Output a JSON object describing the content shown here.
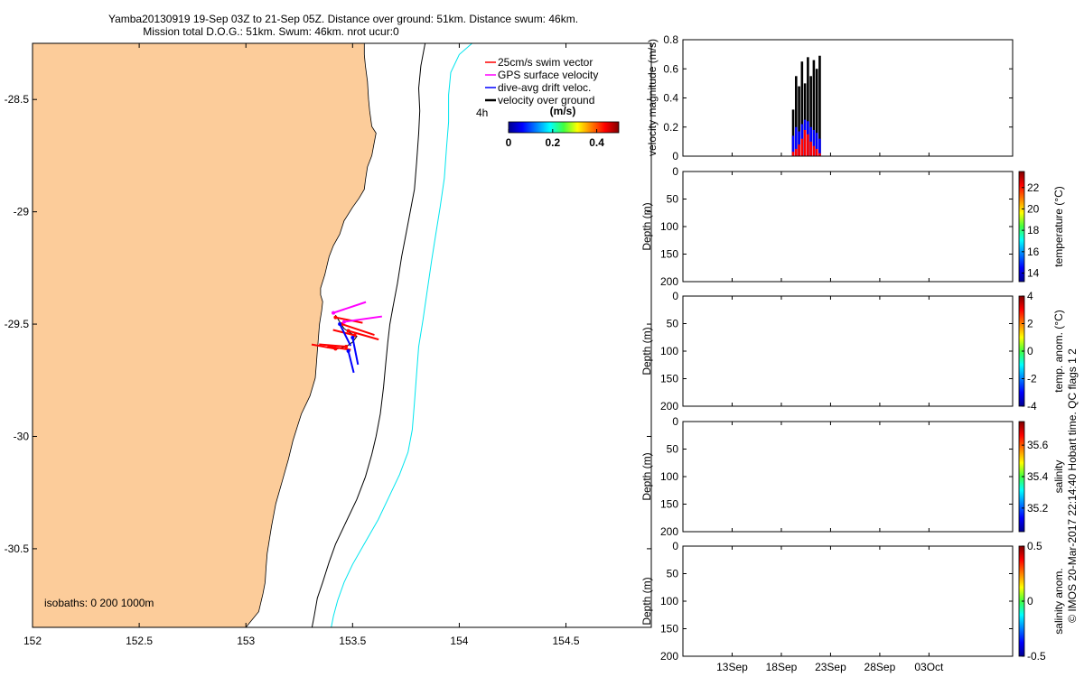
{
  "header": {
    "line1": "Yamba20130919 19-Sep 03Z to 21-Sep 05Z. Distance over ground: 51km. Distance swum: 46km.",
    "line2": "Mission total D.O.G.: 51km. Swum: 46km. nrot ucur:0"
  },
  "footer": {
    "credit": "© IMOS 20-Mar-2017 22:14:40 Hobart time. QC flags 1  2"
  },
  "colors": {
    "land": "#fccc9a",
    "isobath_200": "#000000",
    "isobath_1000": "#00e5ee",
    "swim": "#ff0000",
    "gps": "#ff00ff",
    "dive": "#0000ff",
    "vog": "#000000"
  },
  "chart_data": [
    {
      "id": "map",
      "type": "scatter",
      "title": "",
      "xlabel": "",
      "ylabel": "",
      "xlim": [
        152.0,
        154.9
      ],
      "ylim": [
        -30.85,
        -28.25
      ],
      "xticks": [
        "152",
        "152.5",
        "153",
        "153.5",
        "154",
        "154.5"
      ],
      "xtick_values": [
        152,
        152.5,
        153,
        153.5,
        154,
        154.5
      ],
      "yticks": [
        "-28.5",
        "-29",
        "-29.5",
        "-30",
        "-30.5"
      ],
      "ytick_values": [
        -28.5,
        -29,
        -29.5,
        -30,
        -30.5
      ],
      "legend": {
        "position": "top-right",
        "entries": [
          {
            "label": "25cm/s swim vector",
            "color": "#ff0000"
          },
          {
            "label": "GPS surface velocity",
            "color": "#ff00ff"
          },
          {
            "label": "dive-avg drift veloc.",
            "color": "#0000ff"
          },
          {
            "label": "velocity over ground",
            "color": "#000000"
          }
        ]
      },
      "time_label": "4h",
      "colorbar": {
        "label": "(m/s)",
        "ticks": [
          "0",
          "0.2",
          "0.4"
        ],
        "tick_values": [
          0,
          0.2,
          0.4
        ],
        "range": [
          0,
          0.5
        ]
      },
      "annotation": "isobaths: 0   200  1000m",
      "coast": [
        [
          153.555,
          -28.25
        ],
        [
          153.555,
          -28.3
        ],
        [
          153.56,
          -28.35
        ],
        [
          153.57,
          -28.42
        ],
        [
          153.575,
          -28.5
        ],
        [
          153.58,
          -28.55
        ],
        [
          153.59,
          -28.62
        ],
        [
          153.61,
          -28.65
        ],
        [
          153.6,
          -28.7
        ],
        [
          153.59,
          -28.75
        ],
        [
          153.57,
          -28.8
        ],
        [
          153.56,
          -28.86
        ],
        [
          153.555,
          -28.9
        ],
        [
          153.53,
          -28.94
        ],
        [
          153.5,
          -28.98
        ],
        [
          153.46,
          -29.04
        ],
        [
          153.44,
          -29.1
        ],
        [
          153.41,
          -29.15
        ],
        [
          153.39,
          -29.2
        ],
        [
          153.37,
          -29.28
        ],
        [
          153.35,
          -29.34
        ],
        [
          153.35,
          -29.37
        ],
        [
          153.36,
          -29.4
        ],
        [
          153.355,
          -29.44
        ],
        [
          153.345,
          -29.5
        ],
        [
          153.34,
          -29.56
        ],
        [
          153.335,
          -29.62
        ],
        [
          153.33,
          -29.68
        ],
        [
          153.325,
          -29.74
        ],
        [
          153.3,
          -29.82
        ],
        [
          153.26,
          -29.9
        ],
        [
          153.24,
          -29.96
        ],
        [
          153.22,
          -30.02
        ],
        [
          153.2,
          -30.1
        ],
        [
          153.17,
          -30.2
        ],
        [
          153.14,
          -30.3
        ],
        [
          153.12,
          -30.4
        ],
        [
          153.11,
          -30.46
        ],
        [
          153.1,
          -30.52
        ],
        [
          153.095,
          -30.58
        ],
        [
          153.09,
          -30.65
        ],
        [
          153.08,
          -30.7
        ],
        [
          153.06,
          -30.78
        ],
        [
          153.0,
          -30.85
        ]
      ],
      "isobath_200": [
        [
          153.84,
          -28.25
        ],
        [
          153.82,
          -28.35
        ],
        [
          153.81,
          -28.45
        ],
        [
          153.815,
          -28.55
        ],
        [
          153.81,
          -28.65
        ],
        [
          153.8,
          -28.78
        ],
        [
          153.79,
          -28.9
        ],
        [
          153.77,
          -29.0
        ],
        [
          153.75,
          -29.1
        ],
        [
          153.73,
          -29.2
        ],
        [
          153.71,
          -29.32
        ],
        [
          153.69,
          -29.42
        ],
        [
          153.675,
          -29.5
        ],
        [
          153.665,
          -29.58
        ],
        [
          153.655,
          -29.68
        ],
        [
          153.645,
          -29.78
        ],
        [
          153.63,
          -29.9
        ],
        [
          153.61,
          -30.0
        ],
        [
          153.59,
          -30.08
        ],
        [
          153.56,
          -30.18
        ],
        [
          153.52,
          -30.28
        ],
        [
          153.47,
          -30.38
        ],
        [
          153.42,
          -30.48
        ],
        [
          153.39,
          -30.56
        ],
        [
          153.36,
          -30.65
        ],
        [
          153.335,
          -30.72
        ],
        [
          153.32,
          -30.8
        ],
        [
          153.31,
          -30.85
        ]
      ],
      "isobath_1000": [
        [
          154.06,
          -28.25
        ],
        [
          154.0,
          -28.3
        ],
        [
          153.96,
          -28.38
        ],
        [
          153.95,
          -28.48
        ],
        [
          153.95,
          -28.6
        ],
        [
          153.94,
          -28.72
        ],
        [
          153.93,
          -28.85
        ],
        [
          153.91,
          -28.98
        ],
        [
          153.89,
          -29.1
        ],
        [
          153.87,
          -29.22
        ],
        [
          153.85,
          -29.35
        ],
        [
          153.83,
          -29.48
        ],
        [
          153.81,
          -29.6
        ],
        [
          153.8,
          -29.72
        ],
        [
          153.79,
          -29.85
        ],
        [
          153.78,
          -29.97
        ],
        [
          153.76,
          -30.07
        ],
        [
          153.72,
          -30.17
        ],
        [
          153.67,
          -30.27
        ],
        [
          153.62,
          -30.37
        ],
        [
          153.56,
          -30.47
        ],
        [
          153.5,
          -30.57
        ],
        [
          153.46,
          -30.65
        ],
        [
          153.43,
          -30.73
        ],
        [
          153.41,
          -30.8
        ],
        [
          153.4,
          -30.85
        ]
      ],
      "track": [
        [
          153.42,
          -29.46
        ],
        [
          153.44,
          -29.49
        ],
        [
          153.46,
          -29.52
        ],
        [
          153.49,
          -29.54
        ],
        [
          153.52,
          -29.555
        ],
        [
          153.5,
          -29.58
        ],
        [
          153.47,
          -29.6
        ],
        [
          153.43,
          -29.61
        ],
        [
          153.405,
          -29.6
        ],
        [
          153.38,
          -29.605
        ]
      ],
      "vectors": [
        {
          "lon": 153.42,
          "lat": -29.47,
          "type": "swim",
          "u": 0.25,
          "v": -0.05
        },
        {
          "lon": 153.45,
          "lat": -29.5,
          "type": "swim",
          "u": 0.3,
          "v": -0.1
        },
        {
          "lon": 153.48,
          "lat": -29.53,
          "type": "swim",
          "u": 0.28,
          "v": -0.08
        },
        {
          "lon": 153.51,
          "lat": -29.55,
          "type": "swim",
          "u": -0.2,
          "v": 0.05
        },
        {
          "lon": 153.47,
          "lat": -29.6,
          "type": "swim",
          "u": -0.25,
          "v": 0.02
        },
        {
          "lon": 153.42,
          "lat": -29.61,
          "type": "swim",
          "u": -0.22,
          "v": 0.04
        },
        {
          "lon": 153.39,
          "lat": -29.6,
          "type": "swim",
          "u": 0.2,
          "v": -0.03
        },
        {
          "lon": 153.44,
          "lat": -29.5,
          "type": "dive",
          "u": 0.1,
          "v": -0.2
        },
        {
          "lon": 153.5,
          "lat": -29.56,
          "type": "dive",
          "u": 0.05,
          "v": -0.25
        },
        {
          "lon": 153.48,
          "lat": -29.62,
          "type": "dive",
          "u": 0.05,
          "v": -0.2
        },
        {
          "lon": 153.41,
          "lat": -29.45,
          "type": "gps",
          "u": 0.3,
          "v": 0.1
        },
        {
          "lon": 153.46,
          "lat": -29.49,
          "type": "gps",
          "u": 0.35,
          "v": 0.05
        }
      ]
    },
    {
      "id": "velocity",
      "type": "bar",
      "title": "",
      "xlabel": "",
      "ylabel": "velocity magnitude (m/s)",
      "ylim": [
        0,
        0.8
      ],
      "xlim": [
        8.0,
        41.5
      ],
      "yticks": [
        "0",
        "0.2",
        "0.4",
        "0.6",
        "0.8"
      ],
      "ytick_values": [
        0,
        0.2,
        0.4,
        0.6,
        0.8
      ],
      "series": [
        {
          "name": "velocity over ground",
          "color": "#000000",
          "x": [
            19.2,
            19.5,
            19.8,
            20.1,
            20.4,
            20.7,
            21.0,
            21.3,
            21.6,
            21.9
          ],
          "values": [
            0.32,
            0.55,
            0.48,
            0.65,
            0.5,
            0.68,
            0.55,
            0.66,
            0.6,
            0.69
          ]
        },
        {
          "name": "dive-avg drift veloc.",
          "color": "#0000ff",
          "x": [
            19.2,
            19.5,
            19.8,
            20.1,
            20.4,
            20.7,
            21.0,
            21.3,
            21.6,
            21.9
          ],
          "values": [
            0.14,
            0.2,
            0.17,
            0.22,
            0.25,
            0.24,
            0.2,
            0.18,
            0.16,
            0.12
          ]
        },
        {
          "name": "25cm/s swim vector",
          "color": "#ff0000",
          "x": [
            19.2,
            19.5,
            19.8,
            20.1,
            20.4,
            20.7,
            21.0,
            21.3,
            21.6,
            21.9
          ],
          "values": [
            0.03,
            0.05,
            0.08,
            0.12,
            0.18,
            0.15,
            0.1,
            0.07,
            0.05,
            0.02
          ]
        }
      ]
    },
    {
      "id": "temperature",
      "type": "heatmap",
      "title": "",
      "xlabel": "",
      "ylabel": "Depth (m)",
      "ylim": [
        200,
        0
      ],
      "yticks": [
        "0",
        "50",
        "100",
        "150",
        "200"
      ],
      "ytick_values": [
        0,
        50,
        100,
        150,
        200
      ],
      "colorbar": {
        "label": "temperature (°C)",
        "range": [
          13.2,
          23.5
        ],
        "ticks": [
          "14",
          "16",
          "18",
          "20",
          "22"
        ],
        "tick_values": [
          14,
          16,
          18,
          20,
          22
        ]
      }
    },
    {
      "id": "temp_anom",
      "type": "heatmap",
      "title": "",
      "xlabel": "",
      "ylabel": "Depth (m)",
      "ylim": [
        200,
        0
      ],
      "yticks": [
        "0",
        "50",
        "100",
        "150",
        "200"
      ],
      "ytick_values": [
        0,
        50,
        100,
        150,
        200
      ],
      "colorbar": {
        "label": "temp. anom. (°C)",
        "range": [
          -4,
          4
        ],
        "ticks": [
          "-4",
          "-2",
          "0",
          "2",
          "4"
        ],
        "tick_values": [
          -4,
          -2,
          0,
          2,
          4
        ]
      }
    },
    {
      "id": "salinity",
      "type": "heatmap",
      "title": "",
      "xlabel": "",
      "ylabel": "Depth (m)",
      "ylim": [
        200,
        0
      ],
      "yticks": [
        "0",
        "50",
        "100",
        "150",
        "200"
      ],
      "ytick_values": [
        0,
        50,
        100,
        150,
        200
      ],
      "colorbar": {
        "label": "salinity",
        "range": [
          35.05,
          35.75
        ],
        "ticks": [
          "35.2",
          "35.4",
          "35.6"
        ],
        "tick_values": [
          35.2,
          35.4,
          35.6
        ]
      }
    },
    {
      "id": "sal_anom",
      "type": "heatmap",
      "title": "",
      "xlabel": "",
      "ylabel": "Depth (m)",
      "ylim": [
        200,
        0
      ],
      "yticks": [
        "0",
        "50",
        "100",
        "150",
        "200"
      ],
      "ytick_values": [
        0,
        50,
        100,
        150,
        200
      ],
      "xticks": [
        "13Sep",
        "18Sep",
        "23Sep",
        "28Sep",
        "03Oct"
      ],
      "xtick_values": [
        13,
        18,
        23,
        28,
        33
      ],
      "xlim": [
        8.0,
        41.5
      ],
      "colorbar": {
        "label": "salinity anom.",
        "range": [
          -0.5,
          0.5
        ],
        "ticks": [
          "-0.5",
          "0",
          "0.5"
        ],
        "tick_values": [
          -0.5,
          0,
          0.5
        ]
      }
    }
  ]
}
